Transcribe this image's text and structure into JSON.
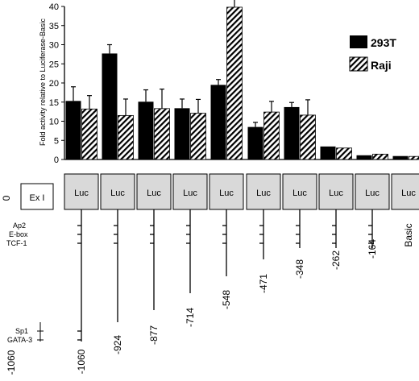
{
  "chart_data": {
    "type": "bar",
    "ylabel": "Fold activity relative to Luciferase-Basic",
    "ylim": [
      0,
      40
    ],
    "yticks": [
      0,
      5,
      10,
      15,
      20,
      25,
      30,
      35,
      40
    ],
    "grid": false,
    "legend_position": "right",
    "categories": [
      "-1060",
      "-924",
      "-877",
      "-714",
      "-548",
      "-471",
      "-348",
      "-262",
      "-164",
      "Basic"
    ],
    "series": [
      {
        "name": "293T",
        "pattern": "solid",
        "color": "#000000",
        "values": [
          15.3,
          27.7,
          15.1,
          13.4,
          19.5,
          8.5,
          13.7,
          3.4,
          1.1,
          0.9
        ],
        "errors": [
          3.7,
          2.3,
          3.1,
          2.4,
          1.4,
          1.2,
          1.2,
          0,
          0,
          0
        ]
      },
      {
        "name": "Raji",
        "pattern": "hatched",
        "color": "#000000",
        "values": [
          13.2,
          11.5,
          13.3,
          12.1,
          39.8,
          12.4,
          11.6,
          3.0,
          1.4,
          0.8
        ],
        "errors": [
          3.5,
          4.3,
          5.1,
          3.6,
          2.5,
          2.8,
          4.0,
          0,
          0,
          0
        ]
      }
    ]
  },
  "diagram": {
    "exon_label": "Ex I",
    "luc_label": "Luc",
    "origin_label": "0",
    "start_label": "-1060",
    "sites": [
      "Ap2",
      "E-box",
      "TCF-1",
      "Sp1",
      "GATA-3"
    ],
    "construct_labels": [
      "-1060",
      "-924",
      "-877",
      "-714",
      "-548",
      "-471",
      "-348",
      "-262",
      "-164",
      "Basic"
    ]
  }
}
